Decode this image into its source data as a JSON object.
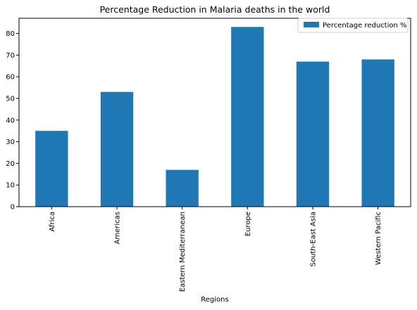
{
  "chart_data": {
    "type": "bar",
    "title": "Percentage Reduction in Malaria deaths in the world",
    "xlabel": "Regions",
    "ylabel": "",
    "categories": [
      "Africa",
      "Americas",
      "Eastern Mediterranean",
      "Europe",
      "South-East Asia",
      "Western Pacific"
    ],
    "series": [
      {
        "name": "Percentage reduction %",
        "values": [
          35,
          53,
          17,
          83,
          67,
          68
        ],
        "color": "#1f77b4"
      }
    ],
    "ylim": [
      0,
      87
    ],
    "yticks": [
      0,
      10,
      20,
      30,
      40,
      50,
      60,
      70,
      80
    ],
    "grid": false,
    "legend_position": "top-right"
  }
}
